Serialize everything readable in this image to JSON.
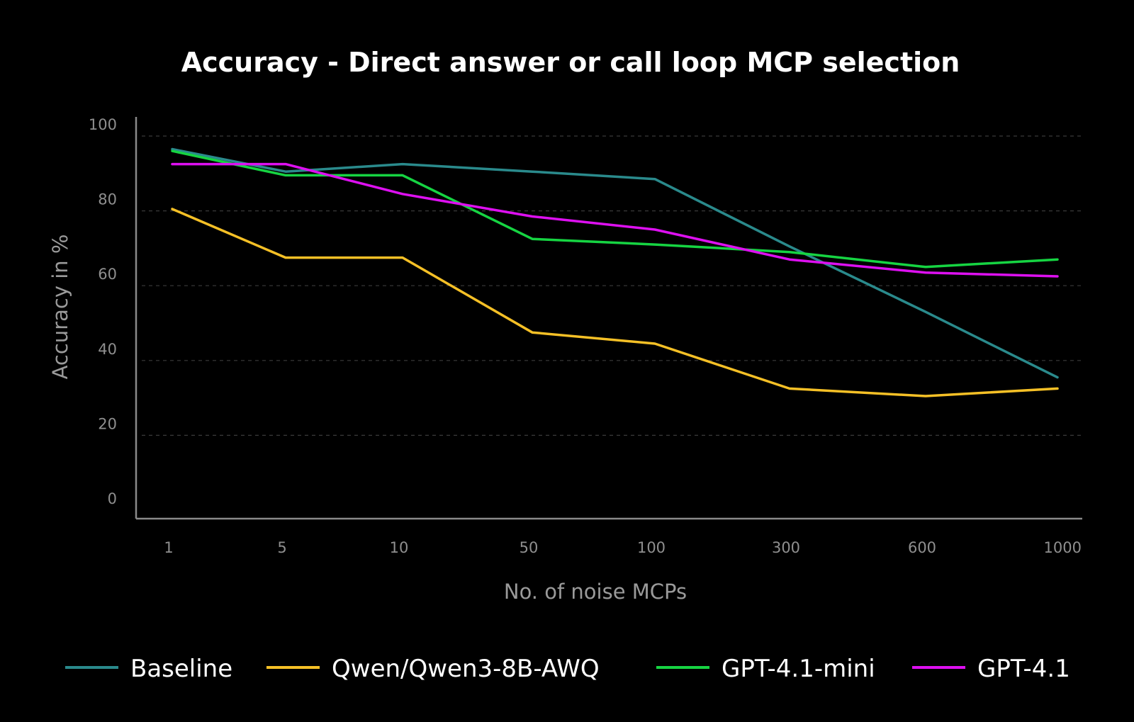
{
  "chart_data": {
    "type": "line",
    "title": "Accuracy - Direct answer or call loop MCP selection",
    "xlabel": "No. of noise MCPs",
    "ylabel": "Accuracy in %",
    "categories": [
      "1",
      "5",
      "10",
      "50",
      "100",
      "300",
      "600",
      "1000"
    ],
    "yticks": [
      "0",
      "20",
      "40",
      "60",
      "80",
      "100"
    ],
    "ylim": [
      0,
      100
    ],
    "grid": true,
    "legend_position": "bottom",
    "series": [
      {
        "name": "Baseline",
        "color": "#2a8a8c",
        "values": [
          96.5,
          90.5,
          92.5,
          90.5,
          88.5,
          70.5,
          53,
          35.5
        ]
      },
      {
        "name": "Qwen/Qwen3-8B-AWQ",
        "color": "#f5c026",
        "values": [
          80.5,
          67.5,
          67.5,
          47.5,
          44.5,
          32.5,
          30.5,
          32.5
        ]
      },
      {
        "name": "GPT-4.1-mini",
        "color": "#16d442",
        "values": [
          96,
          89.5,
          89.5,
          72.5,
          71,
          69,
          65,
          67
        ]
      },
      {
        "name": "GPT-4.1",
        "color": "#dd10f0",
        "values": [
          92.5,
          92.5,
          84.5,
          78.5,
          75,
          67,
          63.5,
          62.5
        ]
      }
    ]
  }
}
